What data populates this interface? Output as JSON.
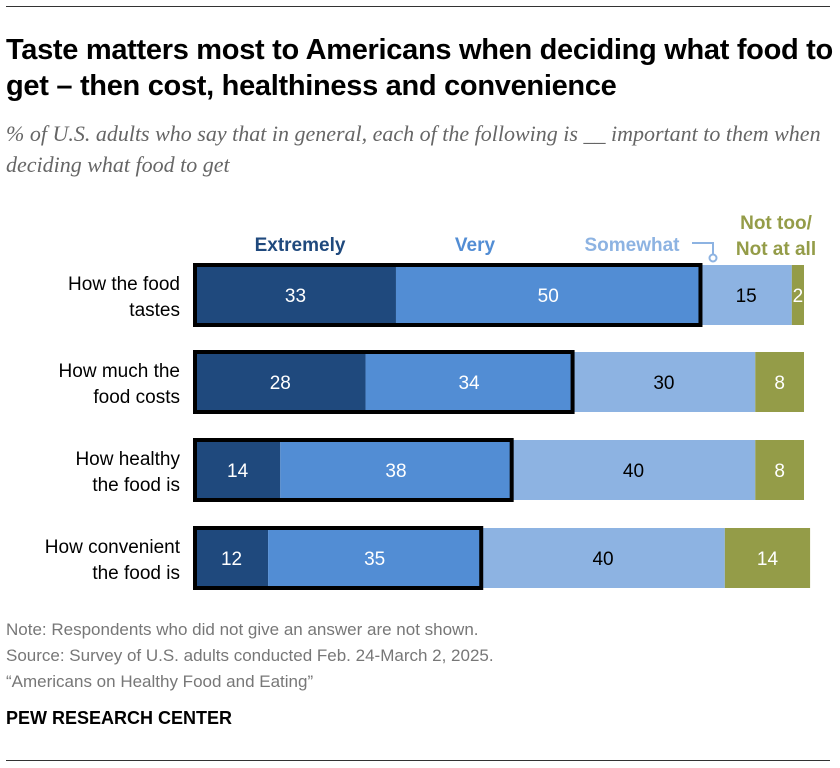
{
  "title": "Taste matters most to Americans when deciding what food to get – then cost, healthiness and convenience",
  "subtitle": "% of U.S. adults who say that in general, each of the following is __ important to them when deciding what food to get",
  "chart_data": {
    "type": "bar",
    "orientation": "horizontal",
    "stacked": true,
    "categories": [
      "How the food tastes",
      "How much the food costs",
      "How healthy the food is",
      "How convenient the food is"
    ],
    "category_lines": [
      [
        "How the food",
        "tastes"
      ],
      [
        "How much the",
        "food costs"
      ],
      [
        "How healthy",
        "the food is"
      ],
      [
        "How convenient",
        "the food is"
      ]
    ],
    "series": [
      {
        "name": "Extremely",
        "values": [
          33,
          28,
          14,
          12
        ],
        "color": "#1f497d",
        "label_color": "#ffffff"
      },
      {
        "name": "Very",
        "values": [
          50,
          34,
          38,
          35
        ],
        "color": "#528dd4",
        "label_color": "#ffffff"
      },
      {
        "name": "Somewhat",
        "values": [
          15,
          30,
          40,
          40
        ],
        "color": "#8db3e2",
        "label_color": "#000000"
      },
      {
        "name": "Not too/ Not at all",
        "values": [
          2,
          8,
          8,
          14
        ],
        "color": "#949c48",
        "label_color": "#ffffff"
      }
    ],
    "legend_lines": [
      [
        "Extremely"
      ],
      [
        "Very"
      ],
      [
        "Somewhat"
      ],
      [
        "Not too/",
        "Not at all"
      ]
    ],
    "highlight": "Extremely + Very outlined",
    "xlim": [
      0,
      100
    ],
    "legend": "top"
  },
  "notes": {
    "note": "Note: Respondents who did not give an answer are not shown.",
    "source": "Source: Survey of U.S. adults conducted Feb. 24-March 2, 2025.",
    "report": "“Americans on Healthy Food and Eating”"
  },
  "brand": "PEW RESEARCH CENTER"
}
